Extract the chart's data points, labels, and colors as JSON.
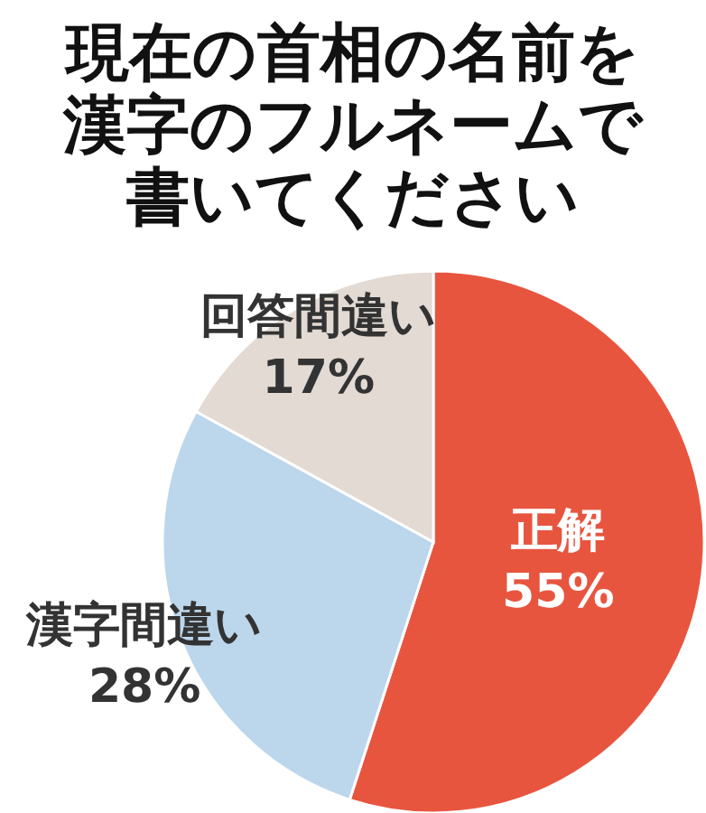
{
  "chart_data": {
    "type": "pie",
    "title": "現在の首相の名前を漢字のフルネームで書いてください",
    "categories": [
      "正解",
      "漢字間違い",
      "回答間違い"
    ],
    "values": [
      55,
      28,
      17
    ],
    "value_labels": [
      "55%",
      "28%",
      "17%"
    ],
    "colors": [
      "#e8553f",
      "#bcd6ec",
      "#e2dad3"
    ]
  }
}
